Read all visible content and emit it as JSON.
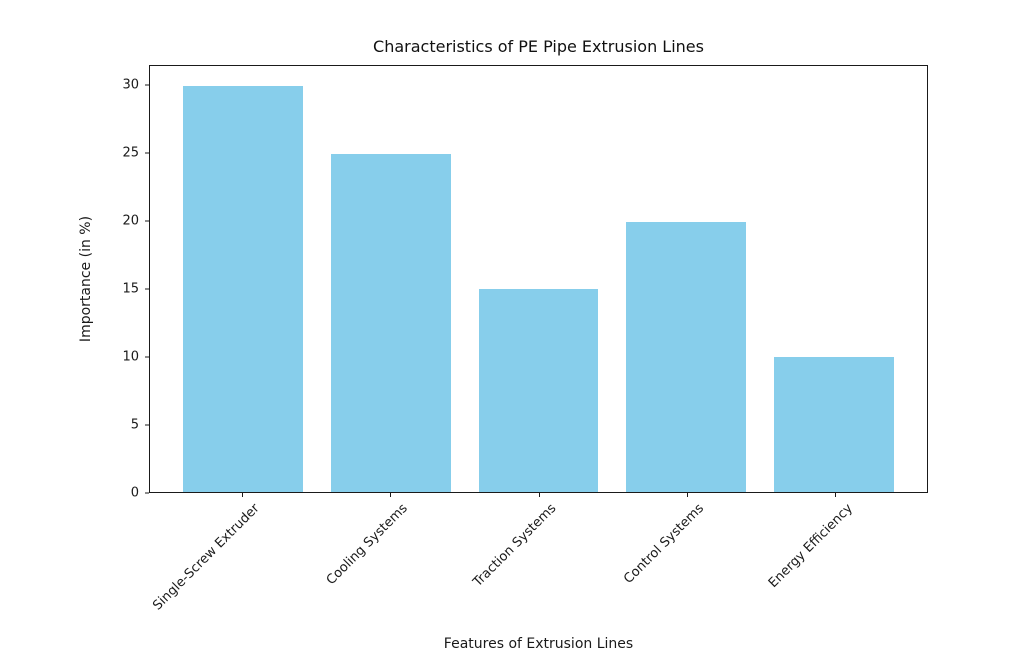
{
  "chart_data": {
    "type": "bar",
    "title": "Characteristics of PE Pipe Extrusion Lines",
    "xlabel": "Features of Extrusion Lines",
    "ylabel": "Importance (in %)",
    "categories": [
      "Single-Screw Extruder",
      "Cooling Systems",
      "Traction Systems",
      "Control Systems",
      "Energy Efficiency"
    ],
    "values": [
      30,
      25,
      15,
      20,
      10
    ],
    "yticks": [
      0,
      5,
      10,
      15,
      20,
      25,
      30
    ],
    "ylim": [
      0,
      31.5
    ],
    "bar_color": "#87CEEB",
    "axis_color": "#1a1a1a",
    "background": "#ffffff",
    "grid": false,
    "legend": "none",
    "xtick_rotation_deg": 45
  }
}
